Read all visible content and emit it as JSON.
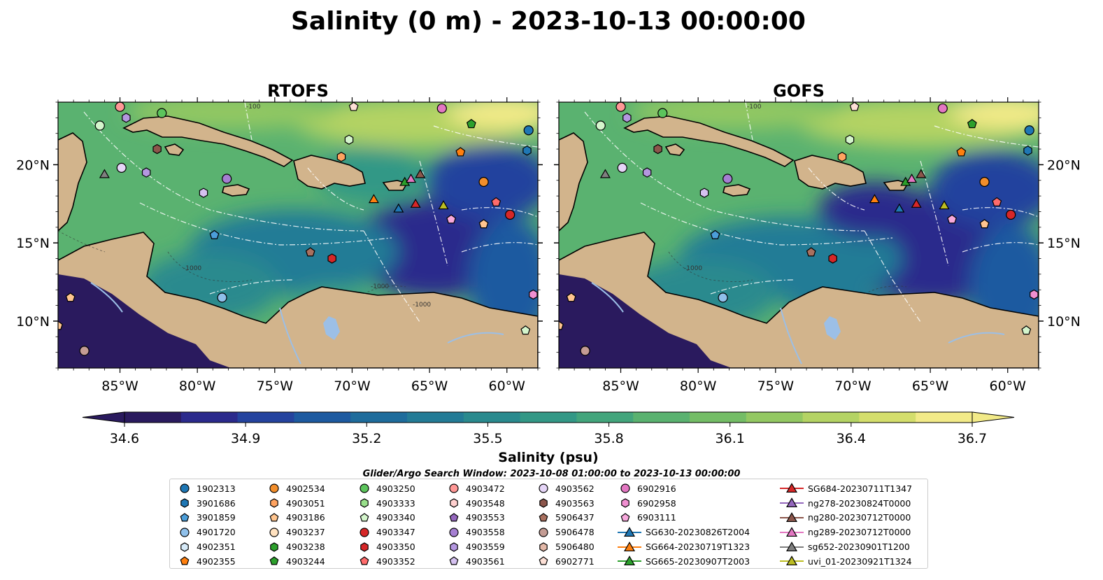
{
  "figure": {
    "title": "Salinity (0 m) - 2023-10-13 00:00:00",
    "search_window": "Glider/Argo Search Window: 2023-10-08 01:00:00 to 2023-10-13 00:00:00"
  },
  "chart_data": [
    {
      "type": "heatmap",
      "title": "RTOFS",
      "xlim": [
        -89,
        -58
      ],
      "ylim": [
        7,
        24
      ],
      "xticks": [
        "85°W",
        "80°W",
        "75°W",
        "70°W",
        "65°W",
        "60°W"
      ],
      "yticks": [
        "10°N",
        "15°N",
        "20°N"
      ],
      "contour_labels": [
        "-100",
        "-1000",
        "-1000",
        "-1000"
      ]
    },
    {
      "type": "heatmap",
      "title": "GOFS",
      "xlim": [
        -89,
        -58
      ],
      "ylim": [
        7,
        24
      ],
      "xticks": [
        "85°W",
        "80°W",
        "75°W",
        "70°W",
        "65°W",
        "60°W"
      ],
      "yticks": [
        "10°N",
        "15°N",
        "20°N"
      ],
      "contour_labels": [
        "-100",
        "-1000"
      ]
    }
  ],
  "colorbar": {
    "label": "Salinity (psu)",
    "min": 34.6,
    "max": 36.7,
    "ticks": [
      "34.6",
      "34.9",
      "35.2",
      "35.5",
      "35.8",
      "36.1",
      "36.4",
      "36.7"
    ],
    "colors": [
      "#2a1a5e",
      "#2b2a8c",
      "#24439e",
      "#1d5aa0",
      "#1e6c9c",
      "#237b96",
      "#2a8a8e",
      "#339886",
      "#43a57c",
      "#5ab270",
      "#74bd66",
      "#93c862",
      "#b4d364",
      "#d4de6c",
      "#f2ea88"
    ]
  },
  "legend": {
    "columns": [
      [
        {
          "label": "1902313",
          "marker": "circle",
          "color": "#1f77b4"
        },
        {
          "label": "3901686",
          "marker": "hexagon",
          "color": "#1f77b4"
        },
        {
          "label": "3901859",
          "marker": "pentagon",
          "color": "#4c9ed9"
        },
        {
          "label": "4901720",
          "marker": "circle",
          "color": "#8fc0ea"
        },
        {
          "label": "4902351",
          "marker": "hexagon",
          "color": "#d6eaf8"
        },
        {
          "label": "4902355",
          "marker": "pentagon",
          "color": "#ff7f0e"
        }
      ],
      [
        {
          "label": "4902534",
          "marker": "circle",
          "color": "#f28e2b"
        },
        {
          "label": "4903051",
          "marker": "hexagon",
          "color": "#ffa360"
        },
        {
          "label": "4903186",
          "marker": "pentagon",
          "color": "#ffc58f"
        },
        {
          "label": "4903237",
          "marker": "circle",
          "color": "#ffe1bf"
        },
        {
          "label": "4903238",
          "marker": "hexagon",
          "color": "#2ca02c"
        },
        {
          "label": "4903244",
          "marker": "pentagon",
          "color": "#2ca02c"
        }
      ],
      [
        {
          "label": "4903250",
          "marker": "circle",
          "color": "#5cc45c"
        },
        {
          "label": "4903333",
          "marker": "hexagon",
          "color": "#98df8a"
        },
        {
          "label": "4903340",
          "marker": "pentagon",
          "color": "#d4f5cc"
        },
        {
          "label": "4903347",
          "marker": "circle",
          "color": "#d62728"
        },
        {
          "label": "4903350",
          "marker": "hexagon",
          "color": "#d62728"
        },
        {
          "label": "4903352",
          "marker": "pentagon",
          "color": "#ff6b6b"
        }
      ],
      [
        {
          "label": "4903472",
          "marker": "circle",
          "color": "#ff9896"
        },
        {
          "label": "4903548",
          "marker": "hexagon",
          "color": "#ffd0cf"
        },
        {
          "label": "4903553",
          "marker": "pentagon",
          "color": "#9467bd"
        },
        {
          "label": "4903558",
          "marker": "circle",
          "color": "#a57fd2"
        },
        {
          "label": "4903559",
          "marker": "hexagon",
          "color": "#b497e0"
        },
        {
          "label": "4903561",
          "marker": "pentagon",
          "color": "#d5c1f0"
        }
      ],
      [
        {
          "label": "4903562",
          "marker": "circle",
          "color": "#e5d5f7"
        },
        {
          "label": "4903563",
          "marker": "hexagon",
          "color": "#8c564b"
        },
        {
          "label": "5906437",
          "marker": "pentagon",
          "color": "#a9705f"
        },
        {
          "label": "5906478",
          "marker": "circle",
          "color": "#c49c94"
        },
        {
          "label": "5906480",
          "marker": "hexagon",
          "color": "#e3b8a8"
        },
        {
          "label": "6902771",
          "marker": "pentagon",
          "color": "#fde0d6"
        }
      ],
      [
        {
          "label": "6902916",
          "marker": "circle",
          "color": "#e377c2"
        },
        {
          "label": "6902958",
          "marker": "hexagon",
          "color": "#f08fd1"
        },
        {
          "label": "6903111",
          "marker": "pentagon",
          "color": "#f7a8dc"
        },
        {
          "label": "SG630-20230826T2004",
          "marker": "triangle",
          "color": "#1f77b4"
        },
        {
          "label": "SG664-20230719T1323",
          "marker": "triangle",
          "color": "#ff7f0e"
        },
        {
          "label": "SG665-20230907T2003",
          "marker": "triangle",
          "color": "#2ca02c"
        }
      ],
      [
        {
          "label": "SG684-20230711T1347",
          "marker": "triangle",
          "color": "#d62728"
        },
        {
          "label": "ng278-20230824T0000",
          "marker": "triangle",
          "color": "#9467bd"
        },
        {
          "label": "ng280-20230712T0000",
          "marker": "triangle",
          "color": "#8c564b"
        },
        {
          "label": "ng289-20230712T0000",
          "marker": "triangle",
          "color": "#e377c2"
        },
        {
          "label": "sg652-20230901T1200",
          "marker": "triangle",
          "color": "#7f7f7f"
        },
        {
          "label": "uvi_01-20230921T1324",
          "marker": "triangle",
          "color": "#bcbd22"
        }
      ]
    ]
  },
  "observations": [
    {
      "lon": -85.0,
      "lat": 23.7,
      "marker": "circle",
      "color": "#ff9896"
    },
    {
      "lon": -84.6,
      "lat": 23.0,
      "marker": "hexagon",
      "color": "#b497e0"
    },
    {
      "lon": -86.3,
      "lat": 22.5,
      "marker": "circle",
      "color": "#d4f5cc"
    },
    {
      "lon": -82.3,
      "lat": 23.3,
      "marker": "circle",
      "color": "#5cc45c"
    },
    {
      "lon": -82.6,
      "lat": 21.0,
      "marker": "hexagon",
      "color": "#8c564b"
    },
    {
      "lon": -86.0,
      "lat": 19.4,
      "marker": "triangle",
      "color": "#7f7f7f"
    },
    {
      "lon": -84.9,
      "lat": 19.8,
      "marker": "circle",
      "color": "#e5d5f7"
    },
    {
      "lon": -83.3,
      "lat": 19.5,
      "marker": "hexagon",
      "color": "#b497e0"
    },
    {
      "lon": -79.6,
      "lat": 18.2,
      "marker": "hexagon",
      "color": "#d5c1f0"
    },
    {
      "lon": -78.1,
      "lat": 19.1,
      "marker": "circle",
      "color": "#a57fd2"
    },
    {
      "lon": -78.9,
      "lat": 15.5,
      "marker": "pentagon",
      "color": "#4c9ed9"
    },
    {
      "lon": -72.7,
      "lat": 14.4,
      "marker": "pentagon",
      "color": "#a9705f"
    },
    {
      "lon": -71.3,
      "lat": 14.0,
      "marker": "hexagon",
      "color": "#d62728"
    },
    {
      "lon": -70.2,
      "lat": 21.6,
      "marker": "hexagon",
      "color": "#d4f5cc"
    },
    {
      "lon": -70.7,
      "lat": 20.5,
      "marker": "hexagon",
      "color": "#ffa360"
    },
    {
      "lon": -69.9,
      "lat": 23.7,
      "marker": "pentagon",
      "color": "#fde0d6"
    },
    {
      "lon": -68.6,
      "lat": 17.8,
      "marker": "triangle",
      "color": "#ff7f0e"
    },
    {
      "lon": -67.0,
      "lat": 17.2,
      "marker": "triangle",
      "color": "#1f77b4"
    },
    {
      "lon": -66.6,
      "lat": 18.9,
      "marker": "triangle",
      "color": "#2ca02c"
    },
    {
      "lon": -66.2,
      "lat": 19.1,
      "marker": "triangle",
      "color": "#e377c2"
    },
    {
      "lon": -65.6,
      "lat": 19.4,
      "marker": "triangle",
      "color": "#8c564b"
    },
    {
      "lon": -65.9,
      "lat": 17.5,
      "marker": "triangle",
      "color": "#d62728"
    },
    {
      "lon": -64.1,
      "lat": 17.4,
      "marker": "triangle",
      "color": "#bcbd22"
    },
    {
      "lon": -64.2,
      "lat": 23.6,
      "marker": "circle",
      "color": "#e377c2"
    },
    {
      "lon": -62.3,
      "lat": 22.6,
      "marker": "pentagon",
      "color": "#2ca02c"
    },
    {
      "lon": -63.0,
      "lat": 20.8,
      "marker": "pentagon",
      "color": "#ff7f0e"
    },
    {
      "lon": -61.5,
      "lat": 18.9,
      "marker": "circle",
      "color": "#f28e2b"
    },
    {
      "lon": -60.7,
      "lat": 17.6,
      "marker": "pentagon",
      "color": "#ff6b6b"
    },
    {
      "lon": -59.8,
      "lat": 16.8,
      "marker": "circle",
      "color": "#d62728"
    },
    {
      "lon": -63.6,
      "lat": 16.5,
      "marker": "pentagon",
      "color": "#f7a8dc"
    },
    {
      "lon": -61.5,
      "lat": 16.2,
      "marker": "pentagon",
      "color": "#ffc58f"
    },
    {
      "lon": -58.6,
      "lat": 22.2,
      "marker": "circle",
      "color": "#1f77b4"
    },
    {
      "lon": -58.7,
      "lat": 20.9,
      "marker": "hexagon",
      "color": "#1f77b4"
    },
    {
      "lon": -58.3,
      "lat": 11.7,
      "marker": "hexagon",
      "color": "#f08fd1"
    },
    {
      "lon": -58.8,
      "lat": 9.4,
      "marker": "pentagon",
      "color": "#d4f5cc"
    },
    {
      "lon": -78.4,
      "lat": 11.5,
      "marker": "circle",
      "color": "#8fc0ea"
    },
    {
      "lon": -88.2,
      "lat": 11.5,
      "marker": "pentagon",
      "color": "#ffc58f"
    },
    {
      "lon": -87.3,
      "lat": 8.1,
      "marker": "circle",
      "color": "#c49c94"
    },
    {
      "lon": -89.0,
      "lat": 9.7,
      "marker": "pentagon",
      "color": "#ffc58f"
    }
  ]
}
